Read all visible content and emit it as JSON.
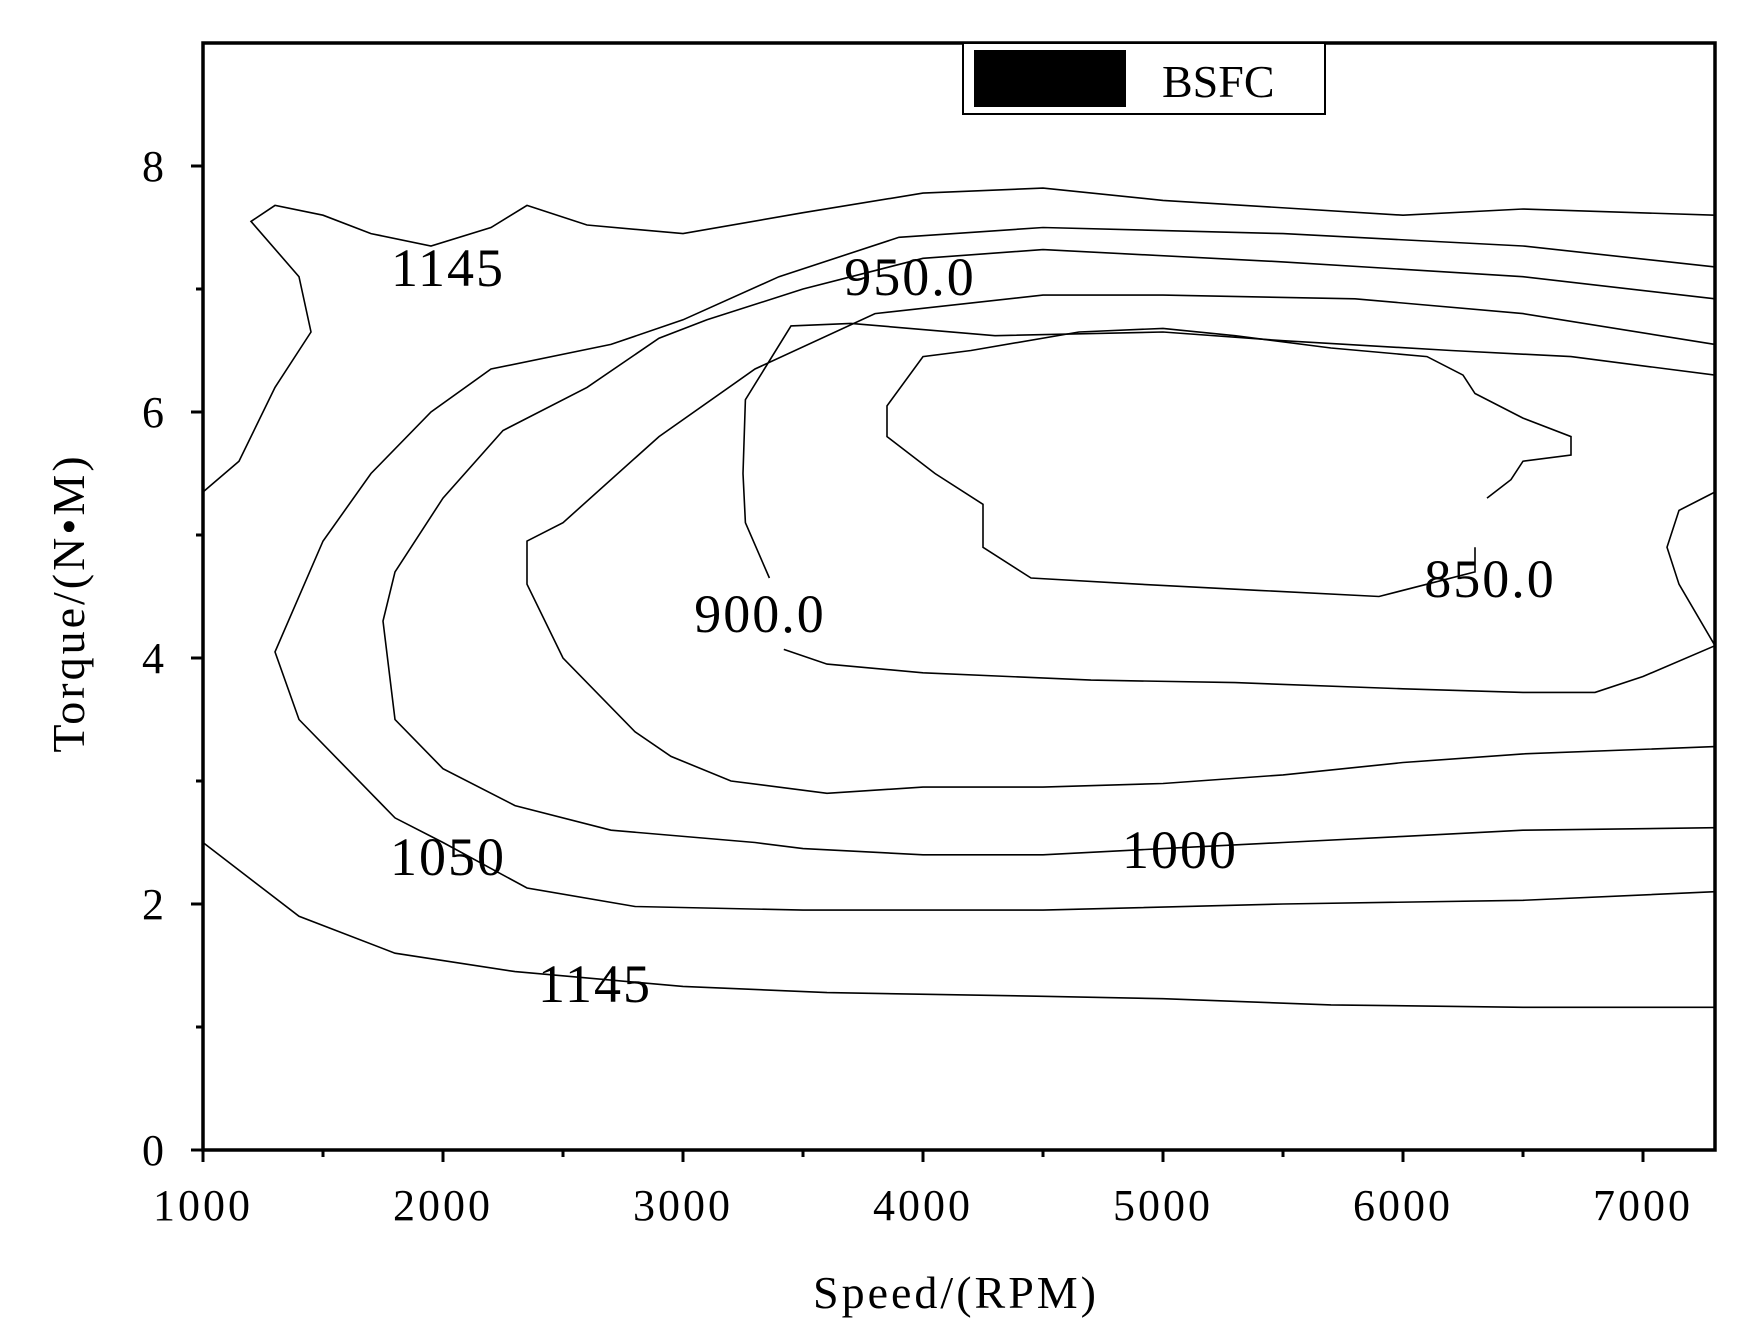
{
  "chart_data": {
    "type": "contour",
    "xlabel": "Speed/(RPM)",
    "ylabel": "Torque/(N•M)",
    "xlim": [
      1000,
      7300
    ],
    "ylim": [
      0,
      9
    ],
    "x_ticks": [
      1000,
      2000,
      3000,
      4000,
      5000,
      6000,
      7000
    ],
    "y_ticks": [
      0,
      2,
      4,
      6,
      8
    ],
    "legend": {
      "label": "BSFC",
      "position": "top-center",
      "color": "#000000"
    },
    "contours": [
      {
        "label": "1145",
        "points": [
          [
            1000,
            2.5
          ],
          [
            1400,
            1.9
          ],
          [
            1800,
            1.6
          ],
          [
            2300,
            1.45
          ],
          [
            3000,
            1.33
          ],
          [
            3600,
            1.28
          ],
          [
            4500,
            1.25
          ],
          [
            5000,
            1.23
          ],
          [
            5700,
            1.18
          ],
          [
            6500,
            1.16
          ],
          [
            7300,
            1.16
          ]
        ]
      },
      {
        "label": "1145",
        "points": [
          [
            1000,
            5.35
          ],
          [
            1150,
            5.6
          ],
          [
            1300,
            6.2
          ],
          [
            1450,
            6.65
          ],
          [
            1400,
            7.1
          ],
          [
            1200,
            7.55
          ],
          [
            1300,
            7.68
          ],
          [
            1500,
            7.6
          ],
          [
            1700,
            7.45
          ],
          [
            1950,
            7.35
          ],
          [
            2200,
            7.5
          ],
          [
            2350,
            7.68
          ],
          [
            2600,
            7.52
          ],
          [
            3000,
            7.45
          ],
          [
            3500,
            7.62
          ],
          [
            4000,
            7.78
          ],
          [
            4500,
            7.82
          ],
          [
            5000,
            7.72
          ],
          [
            6000,
            7.6
          ],
          [
            6500,
            7.65
          ],
          [
            7300,
            7.6
          ]
        ]
      },
      {
        "label": "1050",
        "points": [
          [
            7300,
            7.18
          ],
          [
            6500,
            7.35
          ],
          [
            5500,
            7.45
          ],
          [
            4500,
            7.5
          ],
          [
            3900,
            7.42
          ],
          [
            3400,
            7.1
          ],
          [
            3000,
            6.75
          ],
          [
            2700,
            6.55
          ],
          [
            2200,
            6.35
          ],
          [
            1950,
            6.0
          ],
          [
            1700,
            5.5
          ],
          [
            1500,
            4.95
          ],
          [
            1300,
            4.05
          ],
          [
            1400,
            3.5
          ],
          [
            1600,
            3.1
          ],
          [
            1700,
            2.9
          ],
          [
            1800,
            2.7
          ],
          [
            2000,
            2.5
          ],
          [
            2350,
            2.13
          ],
          [
            2800,
            1.98
          ],
          [
            3500,
            1.95
          ],
          [
            4500,
            1.95
          ],
          [
            5500,
            2.0
          ],
          [
            6500,
            2.03
          ],
          [
            7300,
            2.1
          ]
        ]
      },
      {
        "label": "1000",
        "points": [
          [
            7300,
            6.92
          ],
          [
            6500,
            7.1
          ],
          [
            5500,
            7.22
          ],
          [
            4500,
            7.32
          ],
          [
            4000,
            7.25
          ],
          [
            3500,
            7.0
          ],
          [
            3100,
            6.75
          ],
          [
            2900,
            6.6
          ],
          [
            2600,
            6.2
          ],
          [
            2250,
            5.85
          ],
          [
            2000,
            5.3
          ],
          [
            1800,
            4.7
          ],
          [
            1750,
            4.3
          ],
          [
            1800,
            3.5
          ],
          [
            2000,
            3.1
          ],
          [
            2300,
            2.8
          ],
          [
            2700,
            2.6
          ],
          [
            3300,
            2.5
          ],
          [
            3500,
            2.45
          ],
          [
            4000,
            2.4
          ],
          [
            4500,
            2.4
          ],
          [
            5000,
            2.45
          ],
          [
            5500,
            2.5
          ],
          [
            6000,
            2.55
          ],
          [
            6500,
            2.6
          ],
          [
            7300,
            2.62
          ]
        ]
      },
      {
        "label": "950.0",
        "points": [
          [
            7300,
            6.55
          ],
          [
            6500,
            6.8
          ],
          [
            5800,
            6.92
          ],
          [
            5000,
            6.95
          ],
          [
            4500,
            6.95
          ],
          [
            3800,
            6.8
          ],
          [
            3300,
            6.35
          ],
          [
            2900,
            5.8
          ],
          [
            2500,
            5.1
          ],
          [
            2350,
            4.95
          ],
          [
            2350,
            4.6
          ],
          [
            2500,
            4.0
          ],
          [
            2800,
            3.4
          ],
          [
            2950,
            3.2
          ],
          [
            3200,
            3.0
          ],
          [
            3600,
            2.9
          ],
          [
            4000,
            2.95
          ],
          [
            4500,
            2.95
          ],
          [
            5000,
            2.98
          ],
          [
            5500,
            3.05
          ],
          [
            6000,
            3.15
          ],
          [
            6500,
            3.22
          ],
          [
            7300,
            3.28
          ]
        ]
      },
      {
        "label": "900.0",
        "points": [
          [
            3360,
            4.65
          ],
          [
            3260,
            5.1
          ],
          [
            3250,
            5.5
          ],
          [
            3260,
            6.1
          ],
          [
            3450,
            6.7
          ],
          [
            3700,
            6.72
          ],
          [
            4300,
            6.62
          ],
          [
            5000,
            6.65
          ],
          [
            5500,
            6.58
          ],
          [
            6200,
            6.5
          ],
          [
            6700,
            6.45
          ],
          [
            7300,
            6.3
          ],
          [
            7300,
            4.1
          ],
          [
            7150,
            4.6
          ],
          [
            7100,
            4.9
          ],
          [
            7150,
            5.2
          ],
          [
            7300,
            5.35
          ]
        ]
      },
      {
        "label": "900.0",
        "points": [
          [
            3420,
            4.07
          ],
          [
            3600,
            3.95
          ],
          [
            4000,
            3.88
          ],
          [
            4700,
            3.82
          ],
          [
            5300,
            3.8
          ],
          [
            6000,
            3.75
          ],
          [
            6500,
            3.72
          ],
          [
            6800,
            3.72
          ],
          [
            7000,
            3.85
          ],
          [
            7300,
            4.1
          ]
        ]
      },
      {
        "label": "850.0",
        "points": [
          [
            6300,
            4.9
          ],
          [
            6300,
            4.7
          ],
          [
            6100,
            4.6
          ],
          [
            5900,
            4.5
          ],
          [
            5400,
            4.55
          ],
          [
            4900,
            4.6
          ],
          [
            4450,
            4.65
          ],
          [
            4250,
            4.9
          ],
          [
            4250,
            5.25
          ],
          [
            4050,
            5.5
          ],
          [
            3850,
            5.8
          ],
          [
            3850,
            6.05
          ],
          [
            4000,
            6.45
          ],
          [
            4200,
            6.5
          ],
          [
            4650,
            6.65
          ],
          [
            5000,
            6.68
          ],
          [
            5300,
            6.62
          ],
          [
            5700,
            6.52
          ],
          [
            6100,
            6.45
          ],
          [
            6250,
            6.3
          ],
          [
            6300,
            6.15
          ],
          [
            6500,
            5.95
          ],
          [
            6700,
            5.8
          ],
          [
            6700,
            5.65
          ],
          [
            6500,
            5.6
          ],
          [
            6450,
            5.45
          ],
          [
            6350,
            5.3
          ]
        ]
      }
    ]
  }
}
